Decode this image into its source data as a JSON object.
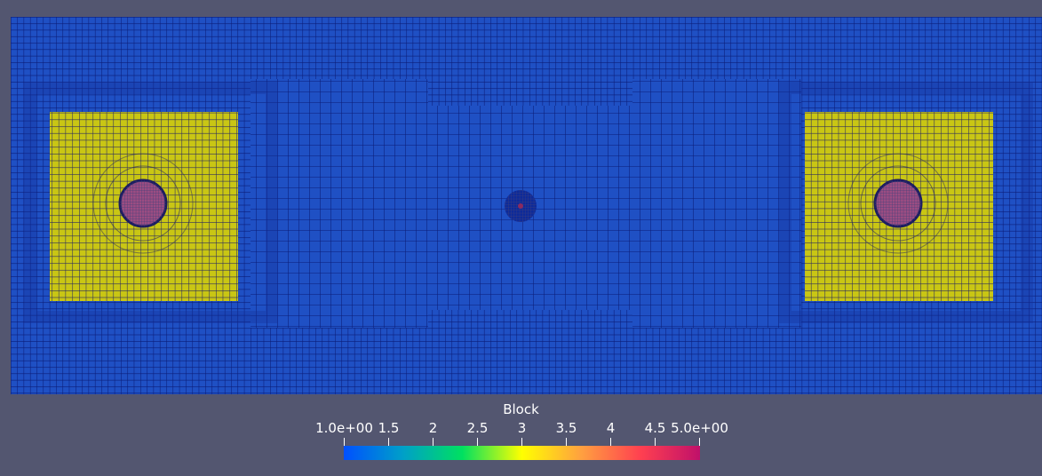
{
  "colors": {
    "background": "#535670",
    "block_1": "#1f50c4",
    "block_2": "#c9c614",
    "block_3": "#9c4d82",
    "edge": "#0b1c78",
    "colormap": [
      "#0050ff",
      "#00a0c8",
      "#00e060",
      "#ffff00",
      "#ffa040",
      "#ff4050",
      "#c0106a"
    ]
  },
  "legend": {
    "title": "Block",
    "range": [
      1.0,
      5.0
    ],
    "ticks": [
      {
        "value": 1.0,
        "label": "1.0e+00"
      },
      {
        "value": 1.5,
        "label": "1.5"
      },
      {
        "value": 2.0,
        "label": "2"
      },
      {
        "value": 2.5,
        "label": "2.5"
      },
      {
        "value": 3.0,
        "label": "3"
      },
      {
        "value": 3.5,
        "label": "3.5"
      },
      {
        "value": 4.0,
        "label": "4"
      },
      {
        "value": 4.5,
        "label": "4.5"
      },
      {
        "value": 5.0,
        "label": "5.0e+00"
      }
    ]
  }
}
